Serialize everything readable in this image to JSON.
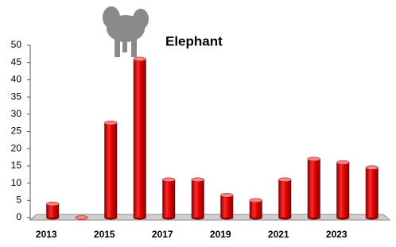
{
  "chart_data": {
    "type": "bar",
    "title": "Elephant",
    "categories": [
      "2013",
      null,
      "2015",
      null,
      "2017",
      null,
      "2019",
      null,
      "2021",
      null,
      "2023",
      null
    ],
    "values": [
      4,
      0,
      27.5,
      46,
      11,
      11,
      6.5,
      5,
      11,
      17,
      16,
      14.5
    ],
    "color": "#e00000",
    "ylim": [
      0,
      50
    ],
    "yticks": [
      0,
      5,
      10,
      15,
      20,
      25,
      30,
      35,
      40,
      45,
      50
    ],
    "grid": false
  }
}
